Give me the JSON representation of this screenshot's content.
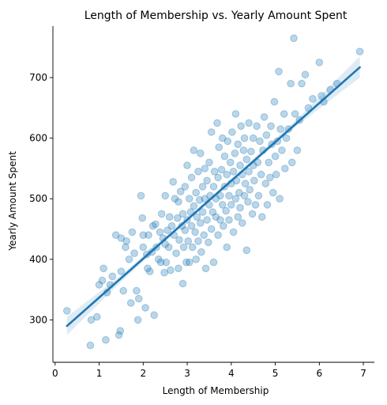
{
  "chart_data": {
    "type": "scatter",
    "title": "Length of Membership vs. Yearly Amount Spent",
    "xlabel": "Length of Membership",
    "ylabel": "Yearly Amount Spent",
    "xlim": [
      -0.05,
      7.25
    ],
    "ylim": [
      230,
      785
    ],
    "xticks": [
      0,
      1,
      2,
      3,
      4,
      5,
      6,
      7
    ],
    "yticks": [
      300,
      400,
      500,
      600,
      700
    ],
    "grid": false,
    "legend": "none",
    "color": "#1f77b4",
    "regression": {
      "x": [
        0.27,
        6.92
      ],
      "y": [
        290,
        717
      ],
      "band": [
        [
          0.27,
          275,
          305
        ],
        [
          1.5,
          363,
          374
        ],
        [
          3.5,
          497,
          501
        ],
        [
          5.5,
          621,
          632
        ],
        [
          6.92,
          700,
          735
        ]
      ]
    },
    "points": [
      [
        0.27,
        315
      ],
      [
        0.8,
        258
      ],
      [
        0.82,
        300
      ],
      [
        0.95,
        305
      ],
      [
        1.0,
        358
      ],
      [
        1.07,
        365
      ],
      [
        1.1,
        385
      ],
      [
        1.18,
        345
      ],
      [
        1.15,
        267
      ],
      [
        1.25,
        358
      ],
      [
        1.3,
        372
      ],
      [
        1.38,
        440
      ],
      [
        1.45,
        275
      ],
      [
        1.48,
        282
      ],
      [
        1.5,
        435
      ],
      [
        1.5,
        380
      ],
      [
        1.55,
        348
      ],
      [
        1.6,
        420
      ],
      [
        1.62,
        430
      ],
      [
        1.68,
        400
      ],
      [
        1.72,
        328
      ],
      [
        1.75,
        445
      ],
      [
        1.8,
        410
      ],
      [
        1.85,
        348
      ],
      [
        1.88,
        300
      ],
      [
        1.9,
        335
      ],
      [
        1.95,
        505
      ],
      [
        1.98,
        468
      ],
      [
        2.0,
        440
      ],
      [
        2.0,
        420
      ],
      [
        2.05,
        320
      ],
      [
        2.08,
        408
      ],
      [
        2.1,
        385
      ],
      [
        2.12,
        440
      ],
      [
        2.15,
        380
      ],
      [
        2.2,
        412
      ],
      [
        2.22,
        455
      ],
      [
        2.25,
        308
      ],
      [
        2.28,
        458
      ],
      [
        2.3,
        420
      ],
      [
        2.35,
        400
      ],
      [
        2.38,
        445
      ],
      [
        2.4,
        395
      ],
      [
        2.42,
        475
      ],
      [
        2.45,
        435
      ],
      [
        2.48,
        378
      ],
      [
        2.5,
        505
      ],
      [
        2.5,
        425
      ],
      [
        2.52,
        395
      ],
      [
        2.55,
        448
      ],
      [
        2.58,
        420
      ],
      [
        2.6,
        470
      ],
      [
        2.62,
        382
      ],
      [
        2.65,
        455
      ],
      [
        2.68,
        528
      ],
      [
        2.7,
        440
      ],
      [
        2.72,
        500
      ],
      [
        2.75,
        410
      ],
      [
        2.78,
        468
      ],
      [
        2.8,
        385
      ],
      [
        2.8,
        495
      ],
      [
        2.82,
        432
      ],
      [
        2.85,
        512
      ],
      [
        2.88,
        455
      ],
      [
        2.9,
        360
      ],
      [
        2.9,
        475
      ],
      [
        2.92,
        420
      ],
      [
        2.95,
        520
      ],
      [
        2.95,
        448
      ],
      [
        2.98,
        395
      ],
      [
        3.0,
        555
      ],
      [
        3.0,
        465
      ],
      [
        3.02,
        430
      ],
      [
        3.05,
        500
      ],
      [
        3.05,
        395
      ],
      [
        3.08,
        478
      ],
      [
        3.1,
        455
      ],
      [
        3.1,
        535
      ],
      [
        3.12,
        420
      ],
      [
        3.15,
        580
      ],
      [
        3.15,
        488
      ],
      [
        3.18,
        445
      ],
      [
        3.2,
        510
      ],
      [
        3.2,
        400
      ],
      [
        3.22,
        470
      ],
      [
        3.25,
        545
      ],
      [
        3.25,
        430
      ],
      [
        3.28,
        498
      ],
      [
        3.3,
        460
      ],
      [
        3.3,
        575
      ],
      [
        3.32,
        412
      ],
      [
        3.35,
        520
      ],
      [
        3.35,
        478
      ],
      [
        3.38,
        440
      ],
      [
        3.4,
        550
      ],
      [
        3.4,
        500
      ],
      [
        3.42,
        385
      ],
      [
        3.45,
        465
      ],
      [
        3.45,
        530
      ],
      [
        3.48,
        428
      ],
      [
        3.5,
        490
      ],
      [
        3.5,
        560
      ],
      [
        3.52,
        505
      ],
      [
        3.55,
        450
      ],
      [
        3.55,
        610
      ],
      [
        3.58,
        478
      ],
      [
        3.6,
        520
      ],
      [
        3.6,
        395
      ],
      [
        3.62,
        545
      ],
      [
        3.65,
        500
      ],
      [
        3.65,
        470
      ],
      [
        3.68,
        625
      ],
      [
        3.7,
        535
      ],
      [
        3.7,
        440
      ],
      [
        3.72,
        585
      ],
      [
        3.75,
        505
      ],
      [
        3.75,
        465
      ],
      [
        3.78,
        548
      ],
      [
        3.8,
        490
      ],
      [
        3.8,
        600
      ],
      [
        3.82,
        455
      ],
      [
        3.85,
        520
      ],
      [
        3.85,
        570
      ],
      [
        3.88,
        480
      ],
      [
        3.9,
        540
      ],
      [
        3.9,
        420
      ],
      [
        3.92,
        595
      ],
      [
        3.95,
        505
      ],
      [
        3.95,
        465
      ],
      [
        3.98,
        560
      ],
      [
        4.0,
        525
      ],
      [
        4.0,
        490
      ],
      [
        4.02,
        610
      ],
      [
        4.05,
        545
      ],
      [
        4.05,
        445
      ],
      [
        4.08,
        575
      ],
      [
        4.1,
        500
      ],
      [
        4.1,
        640
      ],
      [
        4.12,
        530
      ],
      [
        4.15,
        470
      ],
      [
        4.15,
        590
      ],
      [
        4.18,
        510
      ],
      [
        4.2,
        555
      ],
      [
        4.2,
        485
      ],
      [
        4.22,
        620
      ],
      [
        4.25,
        540
      ],
      [
        4.25,
        460
      ],
      [
        4.28,
        580
      ],
      [
        4.3,
        505
      ],
      [
        4.3,
        600
      ],
      [
        4.32,
        525
      ],
      [
        4.35,
        415
      ],
      [
        4.35,
        565
      ],
      [
        4.38,
        495
      ],
      [
        4.4,
        545
      ],
      [
        4.4,
        625
      ],
      [
        4.42,
        515
      ],
      [
        4.45,
        578
      ],
      [
        4.48,
        475
      ],
      [
        4.5,
        555
      ],
      [
        4.5,
        600
      ],
      [
        4.52,
        530
      ],
      [
        4.55,
        490
      ],
      [
        4.58,
        620
      ],
      [
        4.6,
        560
      ],
      [
        4.62,
        505
      ],
      [
        4.65,
        595
      ],
      [
        4.68,
        540
      ],
      [
        4.7,
        470
      ],
      [
        4.72,
        580
      ],
      [
        4.75,
        635
      ],
      [
        4.78,
        525
      ],
      [
        4.8,
        605
      ],
      [
        4.82,
        490
      ],
      [
        4.85,
        560
      ],
      [
        4.88,
        535
      ],
      [
        4.9,
        620
      ],
      [
        4.92,
        590
      ],
      [
        4.95,
        510
      ],
      [
        4.98,
        660
      ],
      [
        5.0,
        570
      ],
      [
        5.02,
        540
      ],
      [
        5.05,
        595
      ],
      [
        5.08,
        710
      ],
      [
        5.1,
        500
      ],
      [
        5.12,
        615
      ],
      [
        5.15,
        580
      ],
      [
        5.2,
        640
      ],
      [
        5.22,
        550
      ],
      [
        5.25,
        600
      ],
      [
        5.3,
        615
      ],
      [
        5.35,
        690
      ],
      [
        5.38,
        560
      ],
      [
        5.42,
        765
      ],
      [
        5.45,
        640
      ],
      [
        5.5,
        580
      ],
      [
        5.55,
        630
      ],
      [
        5.6,
        690
      ],
      [
        5.68,
        705
      ],
      [
        5.75,
        650
      ],
      [
        5.85,
        665
      ],
      [
        6.0,
        725
      ],
      [
        6.05,
        670
      ],
      [
        6.1,
        660
      ],
      [
        6.25,
        680
      ],
      [
        6.4,
        690
      ],
      [
        6.92,
        743
      ]
    ]
  }
}
